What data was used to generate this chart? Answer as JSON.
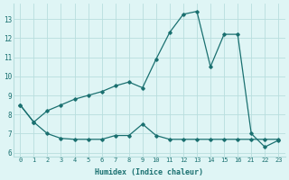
{
  "line1_x": [
    0,
    1,
    2,
    3,
    4,
    5,
    6,
    7,
    8,
    9,
    10,
    11,
    12,
    13,
    14,
    15,
    16,
    17,
    18,
    19
  ],
  "line1_y": [
    8.5,
    7.6,
    8.2,
    8.5,
    8.8,
    9.0,
    9.2,
    9.5,
    9.7,
    9.4,
    10.9,
    12.3,
    13.25,
    13.4,
    10.5,
    12.2,
    12.2,
    7.0,
    6.3,
    6.65
  ],
  "line2_x": [
    0,
    1,
    2,
    3,
    4,
    5,
    6,
    7,
    8,
    9,
    10,
    11,
    12,
    13,
    14,
    15,
    16,
    17,
    18,
    19
  ],
  "line2_y": [
    8.5,
    7.6,
    7.0,
    6.75,
    6.7,
    6.7,
    6.7,
    6.9,
    6.9,
    7.5,
    6.9,
    6.7,
    6.7,
    6.7,
    6.7,
    6.7,
    6.7,
    6.7,
    6.7,
    6.7
  ],
  "xtick_pos": [
    0,
    1,
    2,
    3,
    4,
    5,
    6,
    7,
    8,
    9,
    10,
    11,
    12,
    13,
    14,
    15,
    16,
    17,
    18,
    19
  ],
  "xtick_labels": [
    "0",
    "1",
    "2",
    "3",
    "4",
    "5",
    "6",
    "7",
    "8",
    "9",
    "10",
    "11",
    "12",
    "13",
    "14",
    "15",
    "16",
    "21",
    "22",
    "23"
  ],
  "yticks": [
    6,
    7,
    8,
    9,
    10,
    11,
    12,
    13
  ],
  "line_color": "#1a7070",
  "bg_color": "#dff5f5",
  "grid_color": "#b8dede",
  "xlabel": "Humidex (Indice chaleur)",
  "ylim": [
    5.8,
    13.8
  ],
  "xlim": [
    -0.5,
    19.5
  ]
}
